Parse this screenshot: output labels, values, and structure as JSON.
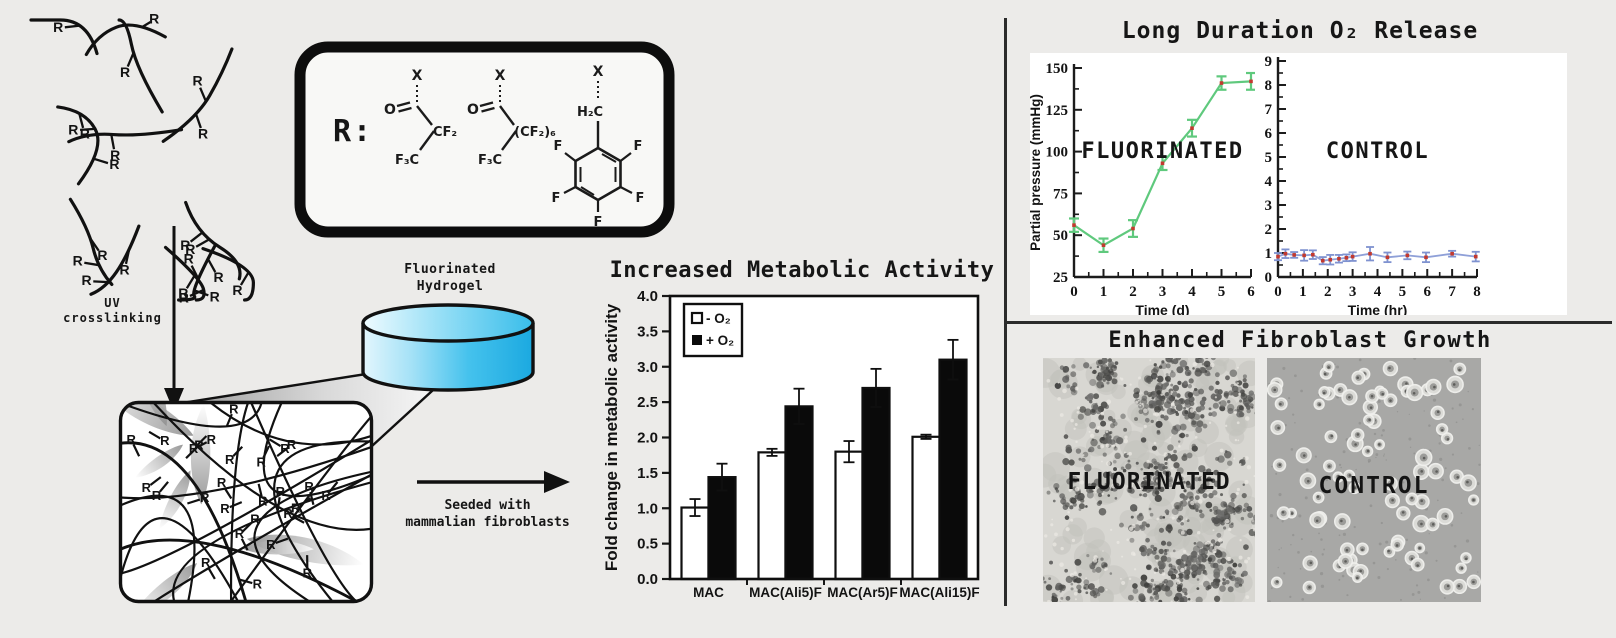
{
  "colors": {
    "background": "#ecebe9",
    "panel_white": "#ffffff",
    "ink": "#131313",
    "green_line": "#5fc97d",
    "marker_red": "#c2392f",
    "control_line": "#8fa0d8",
    "control_error": "#7f92d0",
    "cylinder_blue": "#27b1e6",
    "micro_left_bg": "#d8d7d2",
    "micro_right_bg": "#a8a8a6"
  },
  "diagram": {
    "r_label": "R",
    "r_prefix": "R:",
    "uv_label": [
      "UV",
      "crosslinking"
    ],
    "hydrogel_label": [
      "Fluorinated",
      "Hydrogel"
    ],
    "seeded_label": [
      "Seeded with",
      "mammalian fibroblasts"
    ],
    "chem": {
      "x": "X",
      "o": "O",
      "cf2": "CF₂",
      "f3c": "F₃C",
      "cf2_6": "(CF₂)₆",
      "h2c": "H₂C",
      "f": "F"
    }
  },
  "panels": {
    "o2_release": {
      "title": "Long Duration O₂ Release"
    },
    "fibroblast": {
      "title": "Enhanced Fibroblast Growth",
      "left_label": "FLUORINATED",
      "right_label": "CONTROL"
    }
  },
  "chart_data": [
    {
      "id": "metabolic-activity",
      "type": "bar",
      "title": "Increased Metabolic Activity",
      "ylabel": "Fold change in metabolic activity",
      "ylim": [
        0,
        4.0
      ],
      "yticks": [
        0,
        0.5,
        1.0,
        1.5,
        2.0,
        2.5,
        3.0,
        3.5,
        4.0
      ],
      "ytick_labels": [
        "0.0",
        "0.5",
        "1.0",
        "1.5",
        "2.0",
        "2.5",
        "3.0",
        "3.5",
        "4.0"
      ],
      "categories": [
        "MAC",
        "MAC(Ali5)F",
        "MAC(Ar5)F",
        "MAC(Ali15)F"
      ],
      "series": [
        {
          "name": "- O₂",
          "fill": "#ffffff",
          "values": [
            1.01,
            1.79,
            1.8,
            2.01
          ],
          "errors": [
            0.12,
            0.05,
            0.15,
            0.03
          ]
        },
        {
          "name": "+ O₂",
          "fill": "#0a0a0a",
          "values": [
            1.44,
            2.44,
            2.7,
            3.1
          ],
          "errors": [
            0.19,
            0.25,
            0.27,
            0.28
          ]
        }
      ],
      "legend_position": "top-left",
      "grid": false
    },
    {
      "id": "o2-fluorinated",
      "type": "line",
      "annotation": "FLUORINATED",
      "xlabel": "Time (d)",
      "ylabel": "Partial pressure (mmHg)",
      "xlim": [
        0,
        6
      ],
      "ylim": [
        25,
        150
      ],
      "xticks": [
        0,
        1,
        2,
        3,
        4,
        5,
        6
      ],
      "yticks": [
        25,
        50,
        75,
        100,
        125,
        150
      ],
      "minor": {
        "x": 0.5,
        "y": 12.5
      },
      "x": [
        0,
        1,
        2,
        3,
        4,
        5,
        6
      ],
      "y": [
        56,
        44,
        54,
        93,
        114,
        141,
        142
      ],
      "errors": [
        4,
        4,
        5,
        4,
        5,
        4,
        5
      ],
      "line_color": "#5fc97d",
      "error_color": "#5fc97d",
      "marker_color": "#c2392f",
      "grid": false
    },
    {
      "id": "o2-control",
      "type": "line",
      "annotation": "CONTROL",
      "xlabel": "Time (hr)",
      "ylabel": "",
      "xlim": [
        0,
        8
      ],
      "ylim": [
        0,
        9
      ],
      "xticks": [
        0,
        1,
        2,
        3,
        4,
        5,
        6,
        7,
        8
      ],
      "yticks": [
        0,
        1,
        2,
        3,
        4,
        5,
        6,
        7,
        8,
        9
      ],
      "minor": {
        "x": 0.5,
        "y": 0.5
      },
      "x": [
        0,
        0.3,
        0.65,
        1.05,
        1.4,
        1.8,
        2.1,
        2.45,
        2.75,
        3.0,
        3.7,
        4.4,
        5.2,
        5.95,
        7.0,
        7.95
      ],
      "y": [
        0.85,
        0.97,
        0.92,
        0.9,
        0.93,
        0.68,
        0.72,
        0.76,
        0.8,
        0.85,
        0.97,
        0.82,
        0.9,
        0.82,
        0.97,
        0.85
      ],
      "errors": [
        0.15,
        0.18,
        0.12,
        0.22,
        0.18,
        0.15,
        0.2,
        0.16,
        0.14,
        0.18,
        0.28,
        0.2,
        0.16,
        0.2,
        0.12,
        0.2
      ],
      "line_color": "#8fa0d8",
      "error_color": "#7f92d0",
      "marker_color": "#c2392f",
      "grid": false
    }
  ]
}
